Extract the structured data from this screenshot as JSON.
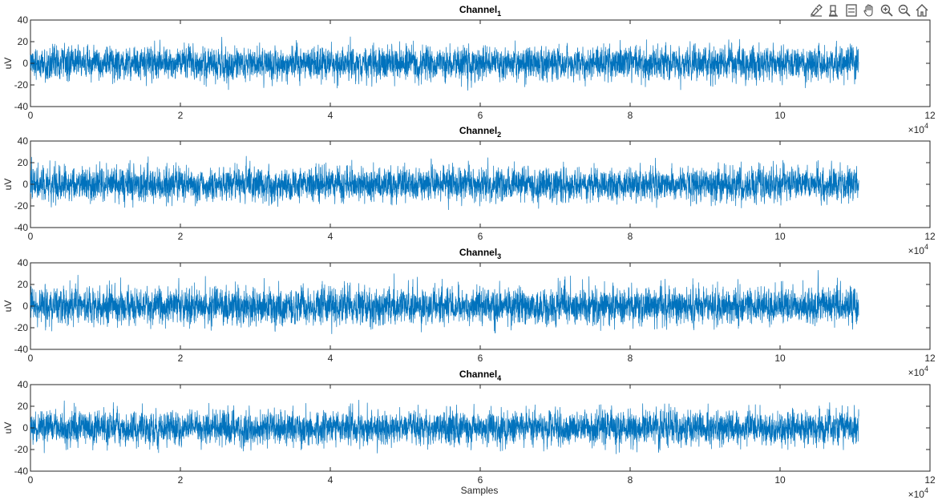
{
  "toolbar": {
    "icons": [
      "brush-icon",
      "data-tips-icon",
      "legend-icon",
      "pan-icon",
      "zoom-in-icon",
      "zoom-out-icon",
      "home-icon"
    ]
  },
  "colors": {
    "signal": "#0072BD",
    "axis": "#262626",
    "background": "#ffffff"
  },
  "chart_data": [
    {
      "type": "line",
      "title": "Channel",
      "title_subscript": "1",
      "ylabel": "uV",
      "xlabel": "",
      "xlim": [
        0,
        120000
      ],
      "ylim": [
        -40,
        40
      ],
      "x_ticks": [
        "0",
        "2",
        "4",
        "6",
        "8",
        "10",
        "12"
      ],
      "y_ticks": [
        "40",
        "20",
        "0",
        "-20",
        "-40"
      ],
      "x_exponent": "×10",
      "x_exponent_power": "4",
      "series": [
        {
          "x_range": [
            0,
            110500
          ],
          "mean": 0,
          "typical_amplitude": 10,
          "min": -30,
          "max": 27
        }
      ]
    },
    {
      "type": "line",
      "title": "Channel",
      "title_subscript": "2",
      "ylabel": "uV",
      "xlabel": "",
      "xlim": [
        0,
        120000
      ],
      "ylim": [
        -40,
        40
      ],
      "x_ticks": [
        "0",
        "2",
        "4",
        "6",
        "8",
        "10",
        "12"
      ],
      "y_ticks": [
        "40",
        "20",
        "0",
        "-20",
        "-40"
      ],
      "x_exponent": "×10",
      "x_exponent_power": "4",
      "series": [
        {
          "x_range": [
            0,
            110500
          ],
          "mean": 0,
          "typical_amplitude": 10,
          "min": -27,
          "max": 30
        }
      ]
    },
    {
      "type": "line",
      "title": "Channel",
      "title_subscript": "3",
      "ylabel": "uV",
      "xlabel": "",
      "xlim": [
        0,
        120000
      ],
      "ylim": [
        -40,
        40
      ],
      "x_ticks": [
        "0",
        "2",
        "4",
        "6",
        "8",
        "10",
        "12"
      ],
      "y_ticks": [
        "40",
        "20",
        "0",
        "-20",
        "-40"
      ],
      "x_exponent": "×10",
      "x_exponent_power": "4",
      "series": [
        {
          "x_range": [
            0,
            110500
          ],
          "mean": 0,
          "typical_amplitude": 11,
          "min": -28,
          "max": 38
        }
      ]
    },
    {
      "type": "line",
      "title": "Channel",
      "title_subscript": "4",
      "ylabel": "uV",
      "xlabel": "Samples",
      "xlim": [
        0,
        120000
      ],
      "ylim": [
        -40,
        40
      ],
      "x_ticks": [
        "0",
        "2",
        "4",
        "6",
        "8",
        "10",
        "12"
      ],
      "y_ticks": [
        "40",
        "20",
        "0",
        "-20",
        "-40"
      ],
      "x_exponent": "×10",
      "x_exponent_power": "4",
      "series": [
        {
          "x_range": [
            0,
            110500
          ],
          "mean": 0,
          "typical_amplitude": 10,
          "min": -31,
          "max": 31
        }
      ]
    }
  ]
}
